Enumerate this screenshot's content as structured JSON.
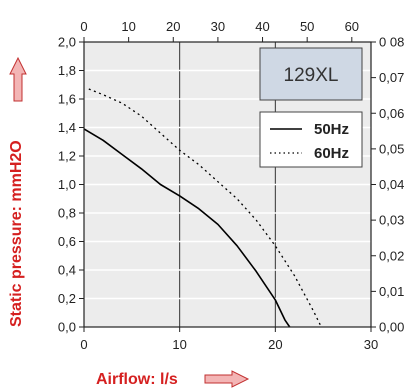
{
  "chart_data": {
    "type": "line",
    "model_label": "129XL",
    "xlabel": "Airflow: l/s",
    "ylabel": "Static pressure: mmH2O",
    "x_bottom": {
      "ticks": [
        "0",
        "10",
        "20",
        "30"
      ],
      "lim": [
        0,
        30
      ]
    },
    "x_top": {
      "ticks": [
        "0",
        "10",
        "20",
        "30",
        "40",
        "50",
        "60"
      ],
      "lim": [
        0,
        64.3
      ]
    },
    "y_left": {
      "ticks": [
        "0,0",
        "0,2",
        "0,4",
        "0,6",
        "0,8",
        "1,0",
        "1,2",
        "1,4",
        "1,6",
        "1,8",
        "2,0"
      ],
      "lim": [
        0,
        2.0
      ]
    },
    "y_right": {
      "ticks": [
        "0,00",
        "0,01",
        "0,02",
        "0,03",
        "0,04",
        "0,05",
        "0,06",
        "0,07",
        "0 08"
      ],
      "lim": [
        0,
        0.08
      ]
    },
    "grid": true,
    "legend": {
      "placement": "top-right"
    },
    "series": [
      {
        "name": "50Hz",
        "style": "solid",
        "color": "#000000",
        "x": [
          0,
          2,
          4,
          6,
          8,
          10,
          12,
          14,
          16,
          18,
          20,
          21,
          21.5
        ],
        "y": [
          1.39,
          1.31,
          1.21,
          1.11,
          1.0,
          0.92,
          0.83,
          0.72,
          0.57,
          0.39,
          0.19,
          0.05,
          0.0
        ]
      },
      {
        "name": "60Hz",
        "style": "dotted",
        "color": "#000000",
        "x": [
          0.5,
          2,
          4,
          6,
          8,
          10,
          12,
          14,
          16,
          18,
          20,
          22,
          24,
          24.8
        ],
        "y": [
          1.67,
          1.63,
          1.57,
          1.48,
          1.36,
          1.24,
          1.14,
          1.02,
          0.9,
          0.75,
          0.57,
          0.36,
          0.11,
          0.0
        ]
      }
    ]
  }
}
